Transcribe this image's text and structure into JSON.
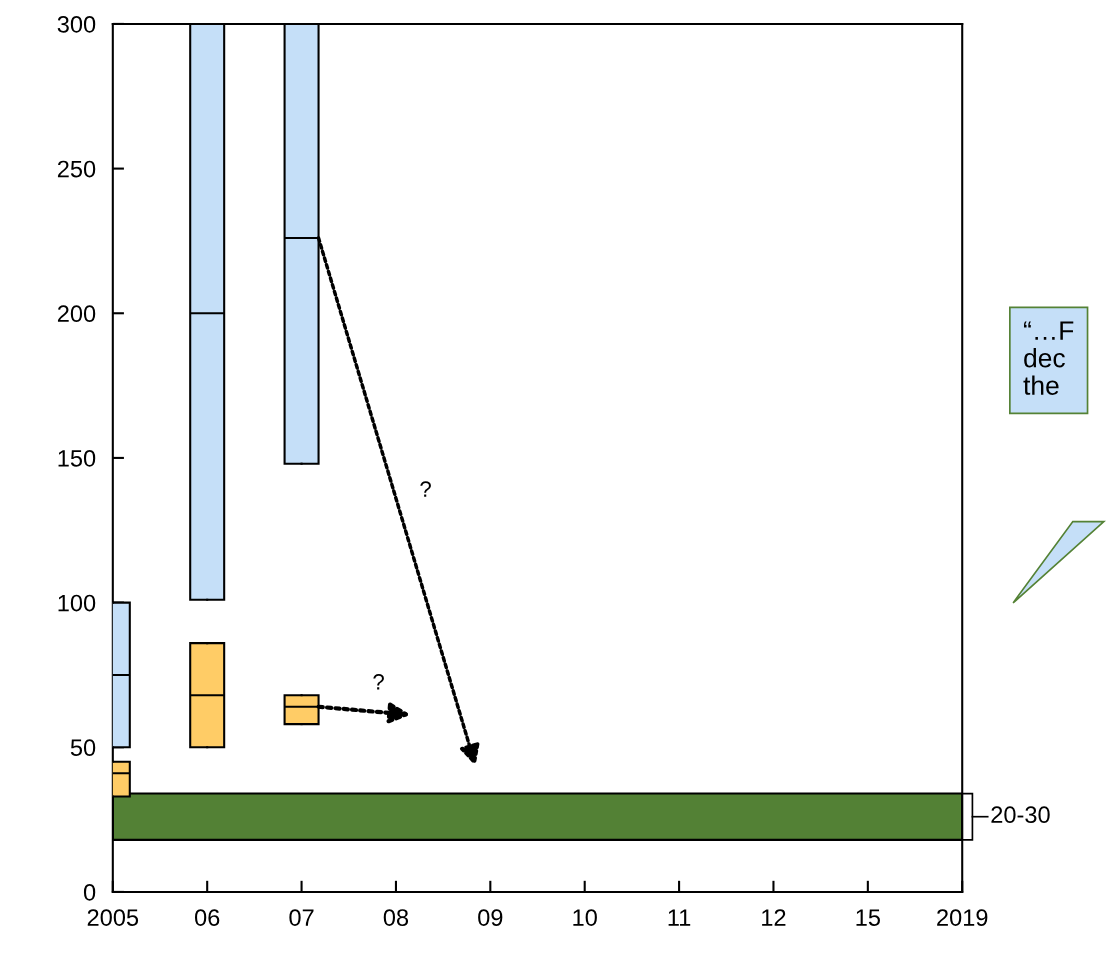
{
  "chart_data": {
    "type": "box",
    "categories": [
      "2005",
      "06",
      "07",
      "08",
      "09",
      "10",
      "11",
      "12",
      "15",
      "2019"
    ],
    "series": [
      {
        "color": "#c5dff8",
        "boxes": [
          {
            "low": 50,
            "q1": 50,
            "median": 75,
            "q3": 100,
            "high": 100
          },
          {
            "low": 101,
            "q1": 101,
            "median": 200,
            "q3": 300,
            "high": 300
          },
          {
            "low": 148,
            "q1": 148,
            "median": 226,
            "q3": 300,
            "high": 300
          },
          null,
          null,
          null,
          null,
          null,
          null,
          null
        ]
      },
      {
        "color": "#ffcc66",
        "boxes": [
          {
            "low": 33,
            "q1": 33,
            "median": 41,
            "q3": 45,
            "high": 45
          },
          {
            "low": 50,
            "q1": 50,
            "median": 68,
            "q3": 86,
            "high": 86
          },
          {
            "low": 58,
            "q1": 58,
            "median": 64,
            "q3": 68,
            "high": 68
          },
          null,
          null,
          null,
          null,
          null,
          null,
          null
        ]
      }
    ],
    "bands": [
      {
        "axis": "y",
        "from": 18,
        "to": 34,
        "label": "20-30",
        "color": "#538135"
      }
    ],
    "ylim": [
      0,
      300
    ],
    "yticks": [
      0,
      50,
      100,
      150,
      200,
      250,
      300
    ],
    "annotations": [
      "?",
      "?",
      "“…F\ndec\nthe"
    ],
    "grid": false
  }
}
